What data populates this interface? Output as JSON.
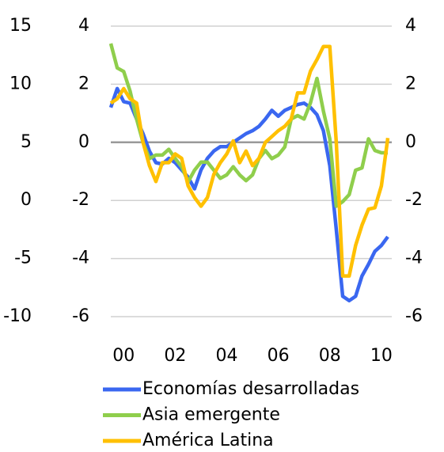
{
  "chart_data": {
    "type": "line",
    "x": [
      2000,
      2000.25,
      2000.5,
      2000.75,
      2001,
      2001.25,
      2001.5,
      2001.75,
      2002,
      2002.25,
      2002.5,
      2002.75,
      2003,
      2003.25,
      2003.5,
      2003.75,
      2004,
      2004.25,
      2004.5,
      2004.75,
      2005,
      2005.25,
      2005.5,
      2005.75,
      2006,
      2006.25,
      2006.5,
      2006.75,
      2007,
      2007.25,
      2007.5,
      2007.75,
      2008,
      2008.25,
      2008.5,
      2008.75,
      2009,
      2009.25,
      2009.5,
      2009.75,
      2010,
      2010.25,
      2010.5,
      2010.75
    ],
    "xlim": [
      2000,
      2010.75
    ],
    "xticks": [
      {
        "value": 2000.5,
        "label": "00"
      },
      {
        "value": 2002.5,
        "label": "02"
      },
      {
        "value": 2004.5,
        "label": "04"
      },
      {
        "value": 2006.5,
        "label": "06"
      },
      {
        "value": 2008.5,
        "label": "08"
      },
      {
        "value": 2010.5,
        "label": "10"
      }
    ],
    "ylim": [
      -10,
      15
    ],
    "yticks": [
      -10,
      -5,
      0,
      5,
      10,
      15
    ],
    "y2lim": [
      -6,
      4
    ],
    "y2ticks": [
      -6,
      -4,
      -2,
      0,
      2,
      4
    ],
    "grid": true,
    "series": [
      {
        "name": "Economías desarrolladas",
        "color": "#3a67f0",
        "axis": "y2",
        "values": [
          1.2,
          1.85,
          1.4,
          1.35,
          0.8,
          0.3,
          -0.3,
          -0.7,
          -0.75,
          -0.55,
          -0.7,
          -0.95,
          -1.2,
          -1.6,
          -0.95,
          -0.55,
          -0.3,
          -0.15,
          -0.15,
          0,
          0.15,
          0.3,
          0.4,
          0.55,
          0.8,
          1.1,
          0.9,
          1.1,
          1.2,
          1.3,
          1.35,
          1.2,
          0.95,
          0.4,
          -0.8,
          -3.0,
          -5.3,
          -5.45,
          -5.3,
          -4.6,
          -4.2,
          -3.75,
          -3.55,
          -3.25
        ]
      },
      {
        "name": "Asia emergente",
        "color": "#8fce4c",
        "axis": "y",
        "values": [
          13.5,
          11.4,
          11.1,
          9.4,
          7.0,
          5.0,
          3.6,
          3.9,
          3.9,
          4.4,
          3.6,
          2.9,
          1.6,
          2.6,
          3.3,
          3.3,
          2.6,
          1.9,
          2.2,
          2.9,
          2.2,
          1.7,
          2.2,
          3.6,
          4.3,
          3.6,
          3.9,
          4.6,
          7.0,
          7.3,
          7.0,
          8.4,
          10.5,
          7.7,
          5.3,
          -0.5,
          -0.1,
          0.5,
          2.6,
          2.8,
          5.3,
          4.3,
          4.1,
          4.1
        ]
      },
      {
        "name": "América Latina",
        "color": "#ffc000",
        "axis": "y2",
        "values": [
          1.35,
          1.5,
          1.85,
          1.5,
          1.35,
          0,
          -0.8,
          -1.35,
          -0.7,
          -0.7,
          -0.4,
          -0.55,
          -1.5,
          -1.9,
          -2.2,
          -1.9,
          -1.1,
          -0.7,
          -0.4,
          0.05,
          -0.7,
          -0.3,
          -0.8,
          -0.55,
          0,
          0.2,
          0.4,
          0.55,
          0.8,
          1.7,
          1.7,
          2.45,
          2.85,
          3.3,
          3.3,
          0,
          -4.6,
          -4.6,
          -3.55,
          -2.85,
          -2.3,
          -2.25,
          -1.5,
          0.15
        ]
      }
    ]
  }
}
